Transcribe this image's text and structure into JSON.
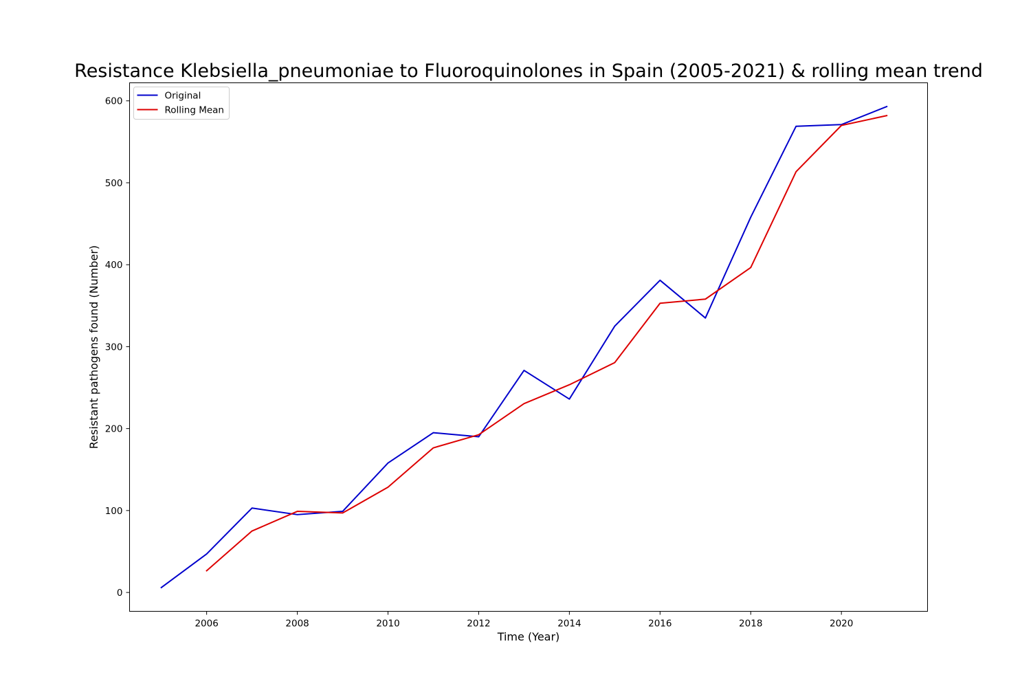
{
  "chart_data": {
    "type": "line",
    "title": "Resistance Klebsiella_pneumoniae to Fluoroquinolones in Spain (2005-2021) & rolling mean trend",
    "xlabel": "Time (Year)",
    "ylabel": "Resistant pathogens found (Number)",
    "xlim": [
      2004.3,
      2021.9
    ],
    "ylim": [
      -23,
      622
    ],
    "xticks": [
      2006,
      2008,
      2010,
      2012,
      2014,
      2016,
      2018,
      2020
    ],
    "yticks": [
      0,
      100,
      200,
      300,
      400,
      500,
      600
    ],
    "grid": false,
    "legend_position": "upper-left",
    "x": [
      2005,
      2006,
      2007,
      2008,
      2009,
      2010,
      2011,
      2012,
      2013,
      2014,
      2015,
      2016,
      2017,
      2018,
      2019,
      2020,
      2021
    ],
    "series": [
      {
        "name": "Original",
        "color": "#0000cc",
        "values": [
          6,
          47,
          103,
          95,
          99,
          158,
          195,
          190,
          271,
          236,
          325,
          381,
          335,
          458,
          569,
          571,
          593
        ]
      },
      {
        "name": "Rolling Mean",
        "color": "#dd0000",
        "values": [
          null,
          26.5,
          75,
          99,
          97,
          128.5,
          176.5,
          192.5,
          230.5,
          253.5,
          280.5,
          353,
          358,
          396.5,
          513.5,
          570,
          582
        ]
      }
    ]
  }
}
